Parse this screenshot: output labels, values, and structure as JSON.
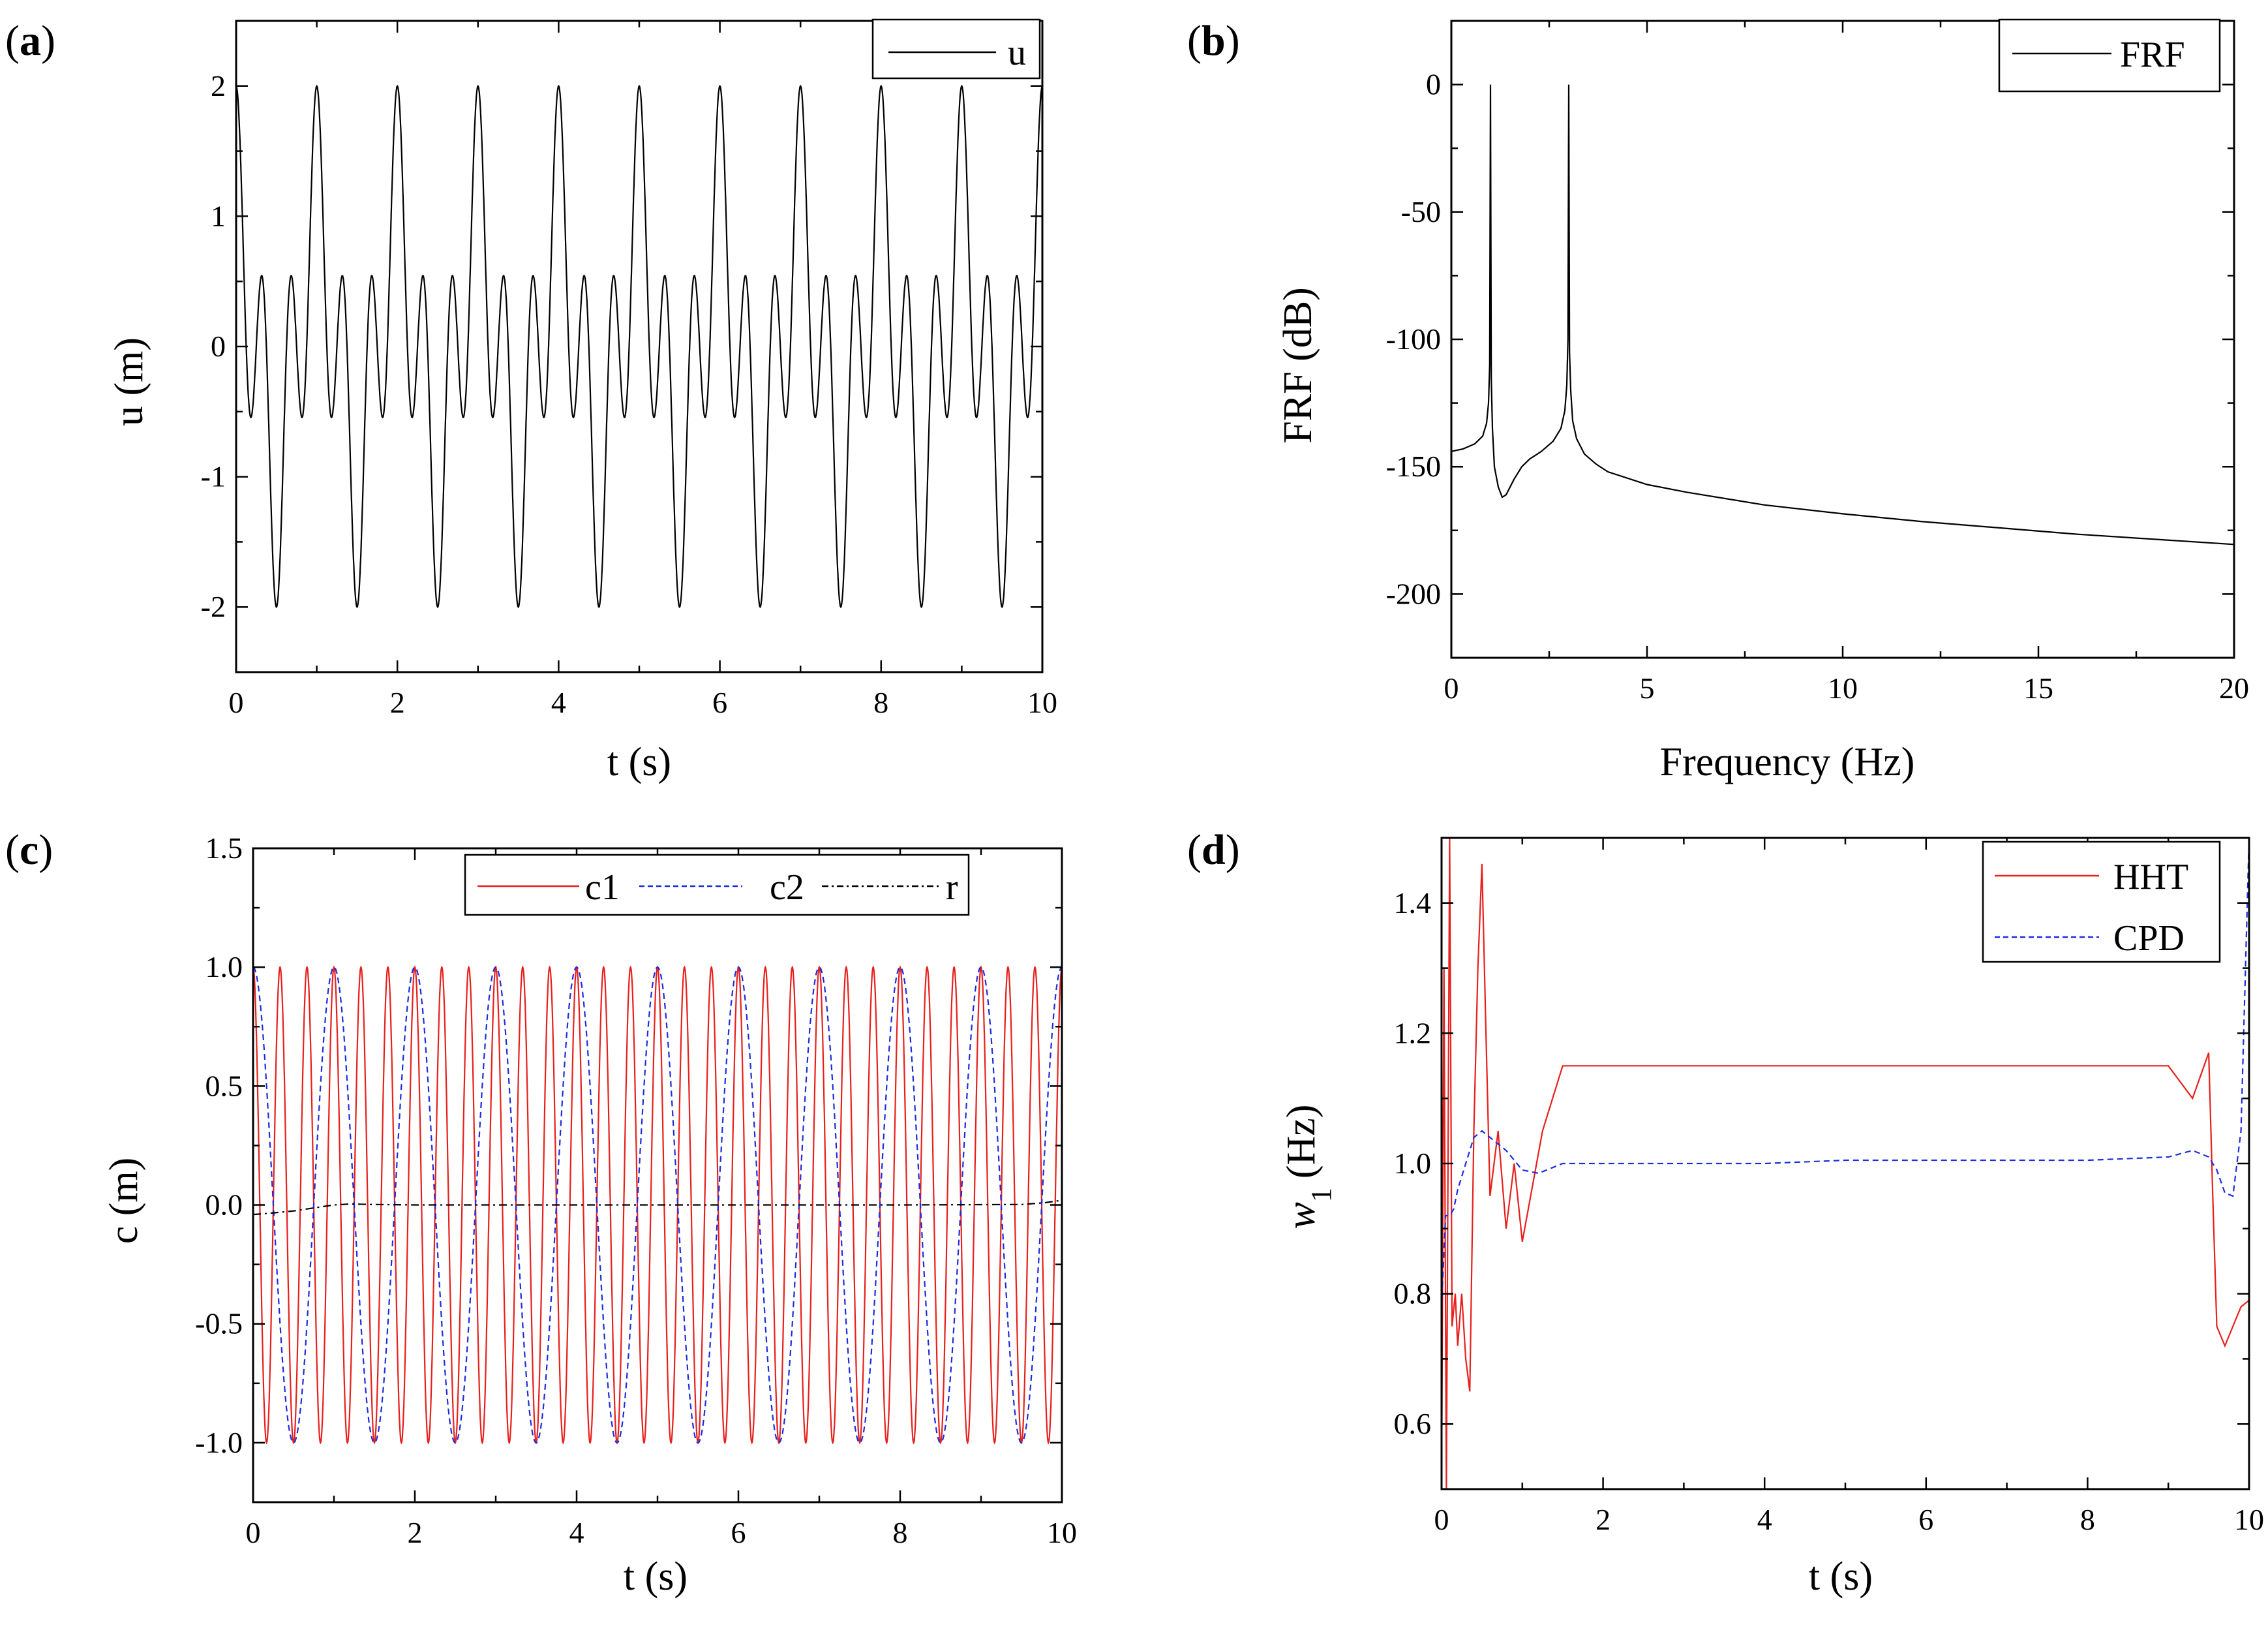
{
  "chart_data": [
    {
      "id": "a",
      "panel_label": {
        "open": "(",
        "letter": "a",
        "close": ")"
      },
      "type": "line",
      "title": "",
      "xlabel": "t (s)",
      "ylabel": "u (m)",
      "xlim": [
        0,
        10
      ],
      "ylim": [
        -2.5,
        2.5
      ],
      "xticks": [
        0,
        2,
        4,
        6,
        8,
        10
      ],
      "xtick_labels": [
        "0",
        "2",
        "4",
        "6",
        "8",
        "10"
      ],
      "yticks": [
        -2,
        -1,
        0,
        1,
        2
      ],
      "ytick_labels": [
        "-2",
        "-1",
        "0",
        "1",
        "2"
      ],
      "legend_position": "top-right",
      "series": [
        {
          "name": "u",
          "color": "#000000",
          "style": "solid",
          "formula": "cos(2*pi*1*t) + cos(2*pi*3*t)",
          "t_range": [
            0,
            10
          ]
        }
      ]
    },
    {
      "id": "b",
      "panel_label": {
        "open": "(",
        "letter": "b",
        "close": ")"
      },
      "type": "line",
      "title": "",
      "xlabel": "Frequency (Hz)",
      "ylabel": "FRF (dB)",
      "xlim": [
        0,
        20
      ],
      "ylim": [
        -225,
        25
      ],
      "xticks": [
        0,
        5,
        10,
        15,
        20
      ],
      "xtick_labels": [
        "0",
        "5",
        "10",
        "15",
        "20"
      ],
      "yticks": [
        -200,
        -150,
        -100,
        -50,
        0
      ],
      "ytick_labels": [
        "-200",
        "-150",
        "-100",
        "-50",
        "0"
      ],
      "legend_position": "top-right",
      "series": [
        {
          "name": "FRF",
          "color": "#000000",
          "style": "solid",
          "x": [
            0,
            0.3,
            0.6,
            0.8,
            0.9,
            0.95,
            0.98,
            1.0,
            1.02,
            1.05,
            1.1,
            1.2,
            1.3,
            1.4,
            1.6,
            1.8,
            2.0,
            2.3,
            2.6,
            2.8,
            2.9,
            2.95,
            2.98,
            3.0,
            3.02,
            3.05,
            3.1,
            3.2,
            3.4,
            3.7,
            4.0,
            5,
            6,
            8,
            10,
            12,
            14,
            16,
            18,
            20
          ],
          "y": [
            -144,
            -143,
            -141,
            -138,
            -133,
            -125,
            -110,
            0,
            -115,
            -135,
            -150,
            -158,
            -162,
            -161,
            -155,
            -150,
            -147,
            -144,
            -140,
            -135,
            -128,
            -118,
            -100,
            0,
            -105,
            -120,
            -132,
            -139,
            -145,
            -149,
            -152,
            -157,
            -160,
            -165,
            -168.5,
            -171.5,
            -174,
            -176.5,
            -178.5,
            -180.5
          ]
        }
      ]
    },
    {
      "id": "c",
      "panel_label": {
        "open": "(",
        "letter": "c",
        "close": ")"
      },
      "type": "line",
      "title": "",
      "xlabel": "t (s)",
      "ylabel": "c (m)",
      "xlim": [
        0,
        10
      ],
      "ylim": [
        -1.25,
        1.5
      ],
      "xticks": [
        0,
        2,
        4,
        6,
        8,
        10
      ],
      "xtick_labels": [
        "0",
        "2",
        "4",
        "6",
        "8",
        "10"
      ],
      "yticks": [
        -1.0,
        -0.5,
        0.0,
        0.5,
        1.0,
        1.5
      ],
      "ytick_labels": [
        "-1.0",
        "-0.5",
        "0.0",
        "0.5",
        "1.0",
        "1.5"
      ],
      "legend_position": "top-right",
      "series": [
        {
          "name": "c1",
          "color": "#e8201c",
          "style": "solid",
          "formula": "cos(2*pi*3*t)",
          "t_range": [
            0,
            10
          ]
        },
        {
          "name": "c2",
          "color": "#1c2de0",
          "style": "dashed",
          "formula": "cos(2*pi*1*t)",
          "t_range": [
            0,
            10
          ]
        },
        {
          "name": "r",
          "color": "#000000",
          "style": "dashdot",
          "x": [
            0,
            0.2,
            0.5,
            0.8,
            1.0,
            1.2,
            1.5,
            2,
            4,
            6,
            8,
            9.5,
            9.8,
            10
          ],
          "y": [
            -0.04,
            -0.035,
            -0.025,
            -0.01,
            0.0,
            0.004,
            0.002,
            0.0,
            0.0,
            0.0,
            0.0,
            0.002,
            0.01,
            0.02
          ]
        }
      ]
    },
    {
      "id": "d",
      "panel_label": {
        "open": "(",
        "letter": "d",
        "close": ")"
      },
      "type": "line",
      "title": "",
      "xlabel": "t (s)",
      "ylabel_main": "w",
      "ylabel_sub": "1",
      "ylabel_units": "(Hz)",
      "xlim": [
        0,
        10
      ],
      "ylim": [
        0.5,
        1.5
      ],
      "xticks": [
        0,
        2,
        4,
        6,
        8,
        10
      ],
      "xtick_labels": [
        "0",
        "2",
        "4",
        "6",
        "8",
        "10"
      ],
      "yticks": [
        0.6,
        0.8,
        1.0,
        1.2,
        1.4
      ],
      "ytick_labels": [
        "0.6",
        "0.8",
        "1.0",
        "1.2",
        "1.4"
      ],
      "legend_position": "top-right",
      "series": [
        {
          "name": "HHT",
          "color": "#e8201c",
          "style": "solid",
          "x": [
            0,
            0.03,
            0.06,
            0.1,
            0.13,
            0.17,
            0.2,
            0.25,
            0.3,
            0.35,
            0.4,
            0.45,
            0.5,
            0.55,
            0.6,
            0.7,
            0.8,
            0.9,
            1.0,
            1.25,
            1.5,
            2,
            4,
            6,
            8,
            9.0,
            9.3,
            9.5,
            9.55,
            9.6,
            9.7,
            9.8,
            9.9,
            10
          ],
          "y": [
            0.5,
            1.3,
            0.5,
            1.5,
            0.75,
            0.8,
            0.72,
            0.8,
            0.7,
            0.65,
            1.05,
            1.3,
            1.46,
            1.2,
            0.95,
            1.05,
            0.9,
            1.0,
            0.88,
            1.05,
            1.15,
            1.15,
            1.15,
            1.15,
            1.15,
            1.15,
            1.1,
            1.17,
            0.95,
            0.75,
            0.72,
            0.75,
            0.78,
            0.79
          ]
        },
        {
          "name": "CPD",
          "color": "#1c2de0",
          "style": "dashed",
          "x": [
            0,
            0.05,
            0.1,
            0.15,
            0.2,
            0.3,
            0.4,
            0.5,
            0.6,
            0.8,
            1.0,
            1.2,
            1.5,
            2,
            3,
            4,
            5,
            6,
            7,
            8,
            9.0,
            9.3,
            9.5,
            9.6,
            9.7,
            9.8,
            9.9,
            10
          ],
          "y": [
            0.78,
            0.92,
            0.92,
            0.93,
            0.96,
            1.0,
            1.04,
            1.05,
            1.04,
            1.02,
            0.99,
            0.985,
            1.0,
            1.0,
            1.0,
            1.0,
            1.005,
            1.005,
            1.005,
            1.005,
            1.01,
            1.02,
            1.01,
            0.99,
            0.955,
            0.95,
            1.05,
            1.5
          ]
        }
      ]
    }
  ]
}
